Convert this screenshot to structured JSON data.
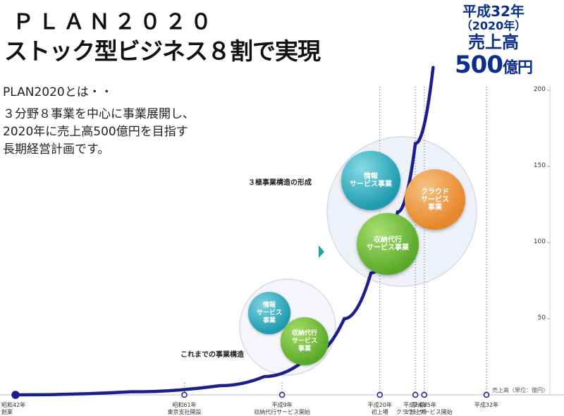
{
  "header": {
    "title_line1": "ＰＬＡＮ２０２０",
    "title_line2": "ストック型ビジネス８割で実現",
    "lead": "PLAN2020とは・・",
    "body_lines": [
      "３分野８事業を中心に事業展開し、",
      "2020年に売上高500億円を目指す",
      "長期経営計画です。"
    ]
  },
  "goal": {
    "line1": "平成32年",
    "line2": "（2020年）",
    "line3": "売上高",
    "amount": "500",
    "amount_unit": "億円"
  },
  "colors": {
    "curve": "#1a1f8c",
    "goal_text": "#0d2f8c",
    "bubble_info": "#1f9bb0",
    "bubble_collection": "#5aaa2a",
    "bubble_cloud": "#e8862a"
  },
  "chart_data": {
    "type": "area",
    "ylabel": "売上高（単位：億円）",
    "ylim": [
      0,
      200
    ],
    "y_ticks": [
      {
        "value": 50,
        "label": "50"
      },
      {
        "value": 100,
        "label": "100"
      },
      {
        "value": 150,
        "label": "150"
      },
      {
        "value": 200,
        "label": "200"
      }
    ],
    "x_marks": [
      {
        "year": 1967,
        "label": [
          "昭和42年",
          "創業"
        ]
      },
      {
        "year": 1986,
        "label": [
          "昭和61年",
          "東京支社開設"
        ]
      },
      {
        "year": 1997,
        "label": [
          "平成9年",
          "収納代行サービス開始"
        ]
      },
      {
        "year": 2008,
        "label": [
          "平成20年",
          "初上場"
        ]
      },
      {
        "year": 2012,
        "label": [
          "平成24年",
          "１部上場"
        ]
      },
      {
        "year": 2013,
        "label": [
          "平成25年",
          "クラウドサービス開始"
        ]
      },
      {
        "year": 2020,
        "label": [
          "平成32年"
        ]
      }
    ],
    "series": [
      {
        "points": [
          [
            1967,
            0
          ],
          [
            1980,
            2
          ],
          [
            1990,
            6
          ],
          [
            1995,
            12
          ],
          [
            2000,
            25
          ],
          [
            2004,
            50
          ],
          [
            2007,
            80
          ],
          [
            2010,
            120
          ],
          [
            2012,
            165
          ],
          [
            2014,
            215
          ]
        ]
      }
    ],
    "annotations": {
      "past_structure": "これまでの事業構造",
      "three_pillar": "３極事業構造の形成"
    },
    "bubbles_past": [
      {
        "label": "情報\nサービス\n事業",
        "kind": "info"
      },
      {
        "label": "収納代行\nサービス\n事業",
        "kind": "collection"
      }
    ],
    "bubbles_future": [
      {
        "label": "情報\nサービス事業",
        "kind": "info"
      },
      {
        "label": "クラウド\nサービス\n事業",
        "kind": "cloud"
      },
      {
        "label": "収納代行\nサービス事業",
        "kind": "collection"
      }
    ]
  }
}
